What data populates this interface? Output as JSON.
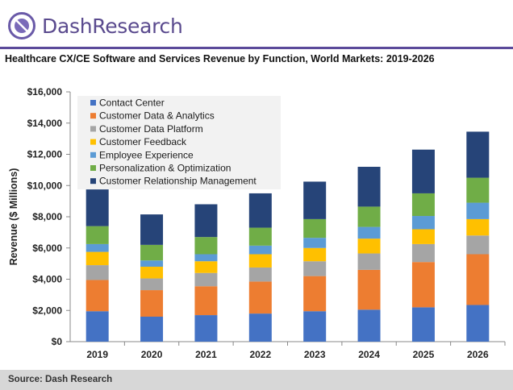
{
  "header": {
    "brand": "DashResearch",
    "brand_color": "#5a4a8e",
    "logo_icon": "dash-research-logo-icon"
  },
  "footer": {
    "source": "Source: Dash Research"
  },
  "chart_data": {
    "type": "bar",
    "stacked": true,
    "title": "Healthcare CX/CE Software and Services Revenue by Function, World Markets: 2019-2026",
    "xlabel": "",
    "ylabel": "Revenue ($ Millions)",
    "ylim": [
      0,
      16000
    ],
    "yticks": [
      "$0",
      "$2,000",
      "$4,000",
      "$6,000",
      "$8,000",
      "$10,000",
      "$12,000",
      "$14,000",
      "$16,000"
    ],
    "ytick_values": [
      0,
      2000,
      4000,
      6000,
      8000,
      10000,
      12000,
      14000,
      16000
    ],
    "categories": [
      "2019",
      "2020",
      "2021",
      "2022",
      "2023",
      "2024",
      "2025",
      "2026"
    ],
    "legend_position": "top-left",
    "grid": false,
    "series": [
      {
        "name": "Contact Center",
        "color": "#4472c4",
        "values": [
          1950,
          1600,
          1700,
          1800,
          1950,
          2050,
          2200,
          2350
        ]
      },
      {
        "name": "Customer Data & Analytics",
        "color": "#ed7d31",
        "values": [
          2000,
          1700,
          1850,
          2050,
          2250,
          2550,
          2900,
          3250
        ]
      },
      {
        "name": "Customer Data Platform",
        "color": "#a5a5a5",
        "values": [
          950,
          750,
          850,
          900,
          950,
          1050,
          1150,
          1200
        ]
      },
      {
        "name": "Customer Feedback",
        "color": "#ffc000",
        "values": [
          850,
          750,
          750,
          850,
          850,
          950,
          950,
          1050
        ]
      },
      {
        "name": "Employee Experience",
        "color": "#5b9bd5",
        "values": [
          500,
          400,
          450,
          550,
          650,
          750,
          850,
          1050
        ]
      },
      {
        "name": "Personalization & Optimization",
        "color": "#70ad47",
        "values": [
          1150,
          1000,
          1100,
          1150,
          1200,
          1300,
          1450,
          1600
        ]
      },
      {
        "name": "Customer Relationship Management",
        "color": "#264478",
        "values": [
          2350,
          1950,
          2100,
          2200,
          2400,
          2550,
          2800,
          2950
        ]
      }
    ]
  }
}
